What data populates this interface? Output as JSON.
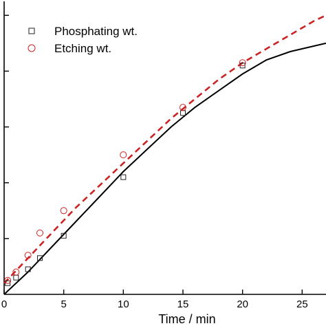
{
  "chart_data": {
    "type": "scatter",
    "xlabel": "Time / min",
    "ylabel": "",
    "xlim": [
      0,
      27
    ],
    "ylim": [
      0,
      1.05
    ],
    "x_ticks": [
      0,
      5,
      10,
      15,
      20,
      25
    ],
    "y_tick_values": [
      0.2,
      0.4,
      0.6,
      0.8,
      1.0
    ],
    "legend": "top-left",
    "series": [
      {
        "name": "Phosphating wt.",
        "marker": "square",
        "color": "#222222",
        "x": [
          0.3,
          1,
          2,
          3,
          5,
          10,
          15,
          20
        ],
        "y": [
          0.04,
          0.06,
          0.09,
          0.13,
          0.21,
          0.42,
          0.65,
          0.82
        ]
      },
      {
        "name": "Etching wt.",
        "marker": "circle",
        "color": "#cc2222",
        "x": [
          0.3,
          1,
          2,
          3,
          5,
          10,
          15,
          20
        ],
        "y": [
          0.05,
          0.08,
          0.14,
          0.22,
          0.3,
          0.5,
          0.67,
          0.83
        ]
      }
    ],
    "fits": [
      {
        "style": "solid",
        "color": "#000000",
        "x": [
          0,
          2,
          4,
          6,
          8,
          10,
          12,
          14,
          16,
          18,
          20,
          22,
          24,
          26,
          27
        ],
        "y": [
          0.0,
          0.08,
          0.17,
          0.26,
          0.35,
          0.44,
          0.52,
          0.6,
          0.67,
          0.73,
          0.79,
          0.84,
          0.87,
          0.89,
          0.9
        ]
      },
      {
        "style": "dashed",
        "color": "#cc2222",
        "x": [
          0,
          2,
          4,
          6,
          8,
          10,
          12,
          14,
          16,
          18,
          20,
          22,
          24,
          26,
          27
        ],
        "y": [
          0.04,
          0.13,
          0.22,
          0.31,
          0.39,
          0.47,
          0.55,
          0.63,
          0.7,
          0.77,
          0.83,
          0.88,
          0.93,
          0.98,
          1.0
        ]
      }
    ]
  }
}
